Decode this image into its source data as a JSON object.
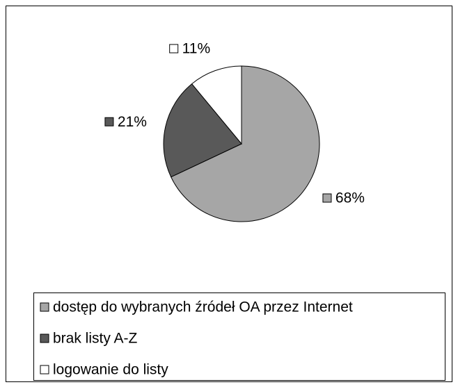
{
  "chart_data": {
    "type": "pie",
    "categories": [
      "dostęp do wybranych źródeł OA przez Internet",
      "brak listy A-Z",
      "logowanie do listy"
    ],
    "values": [
      68,
      21,
      11
    ],
    "value_labels": [
      "68%",
      "21%",
      "11%"
    ],
    "colors": [
      "#a6a6a6",
      "#595959",
      "#ffffff"
    ],
    "legend": "bottom"
  }
}
